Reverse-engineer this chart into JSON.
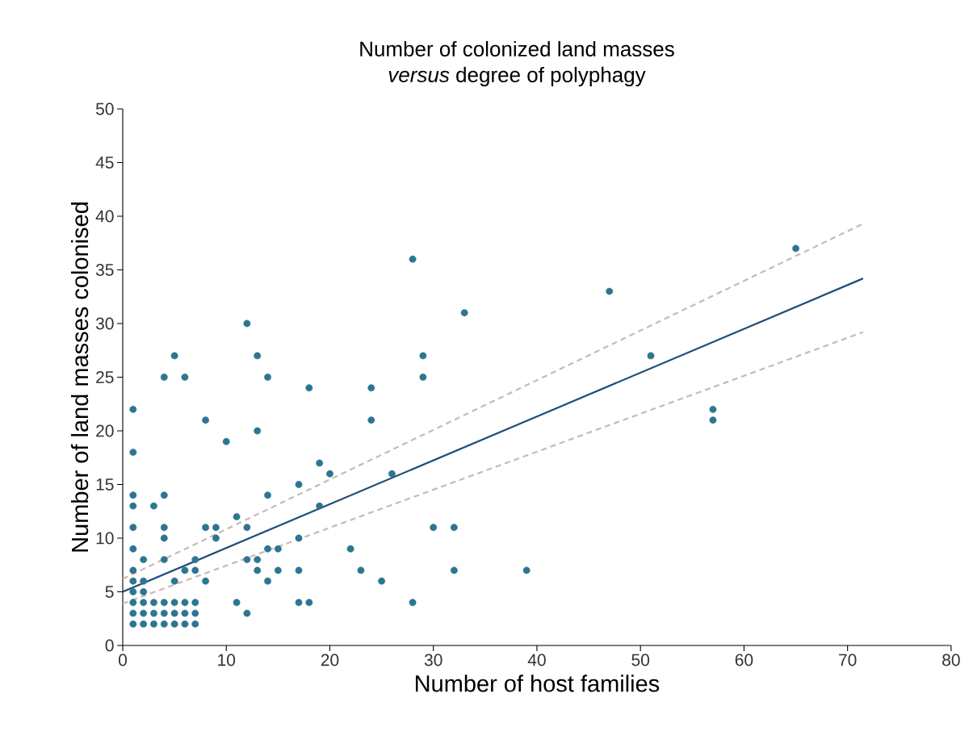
{
  "chart_data": {
    "type": "scatter",
    "title": "Number of colonized land masses",
    "subtitle": "*versus* degree of polyphagy",
    "xlabel": "Number of host families",
    "ylabel": "Number of land masses colonised",
    "xlim": [
      0,
      80
    ],
    "xticks": [
      0,
      10,
      20,
      30,
      40,
      50,
      60,
      70,
      80
    ],
    "ylim": [
      0,
      50
    ],
    "yticks": [
      0,
      5,
      10,
      15,
      20,
      25,
      30,
      35,
      40,
      45,
      50
    ],
    "grid": false,
    "series": [
      {
        "color": "#2e7590",
        "marker": "circle",
        "x": [
          1,
          1,
          1,
          1,
          1,
          1,
          1,
          1,
          1,
          1,
          1,
          1,
          2,
          2,
          2,
          2,
          2,
          2,
          3,
          3,
          3,
          3,
          4,
          4,
          4,
          4,
          4,
          4,
          4,
          4,
          5,
          5,
          5,
          5,
          5,
          6,
          6,
          6,
          6,
          6,
          7,
          7,
          7,
          7,
          7,
          8,
          8,
          8,
          9,
          9,
          10,
          11,
          11,
          12,
          12,
          12,
          12,
          13,
          13,
          13,
          13,
          14,
          14,
          14,
          14,
          15,
          15,
          17,
          17,
          17,
          17,
          18,
          18,
          19,
          19,
          20,
          22,
          23,
          24,
          24,
          25,
          26,
          28,
          28,
          29,
          29,
          30,
          32,
          32,
          33,
          39,
          47,
          51,
          57,
          57,
          65
        ],
        "values": [
          22,
          18,
          14,
          13,
          11,
          9,
          7,
          6,
          5,
          4,
          3,
          2,
          8,
          6,
          5,
          4,
          3,
          2,
          13,
          4,
          3,
          2,
          25,
          14,
          11,
          10,
          8,
          4,
          3,
          2,
          27,
          6,
          4,
          3,
          2,
          25,
          7,
          4,
          3,
          2,
          8,
          7,
          4,
          3,
          2,
          21,
          11,
          6,
          11,
          10,
          19,
          12,
          4,
          30,
          11,
          8,
          3,
          27,
          20,
          8,
          7,
          25,
          14,
          9,
          6,
          9,
          7,
          15,
          10,
          7,
          4,
          24,
          4,
          17,
          13,
          16,
          9,
          7,
          24,
          21,
          6,
          16,
          36,
          4,
          27,
          25,
          11,
          11,
          7,
          31,
          7,
          33,
          27,
          22,
          21,
          37
        ]
      },
      {
        "type": "line",
        "color": "#c9b9b3",
        "line_style": "dashed",
        "marker": "none",
        "x": [
          0,
          71.5
        ],
        "values": [
          6.2,
          39.3
        ]
      },
      {
        "type": "line",
        "color": "#c9b9b3",
        "line_style": "dashed",
        "marker": "none",
        "x": [
          0,
          71.5
        ],
        "values": [
          3.9,
          29.2
        ]
      },
      {
        "type": "line",
        "color": "#1f4e79",
        "line_style": "solid",
        "marker": "none",
        "x": [
          0,
          71.5
        ],
        "values": [
          5.0,
          34.2
        ]
      }
    ]
  }
}
